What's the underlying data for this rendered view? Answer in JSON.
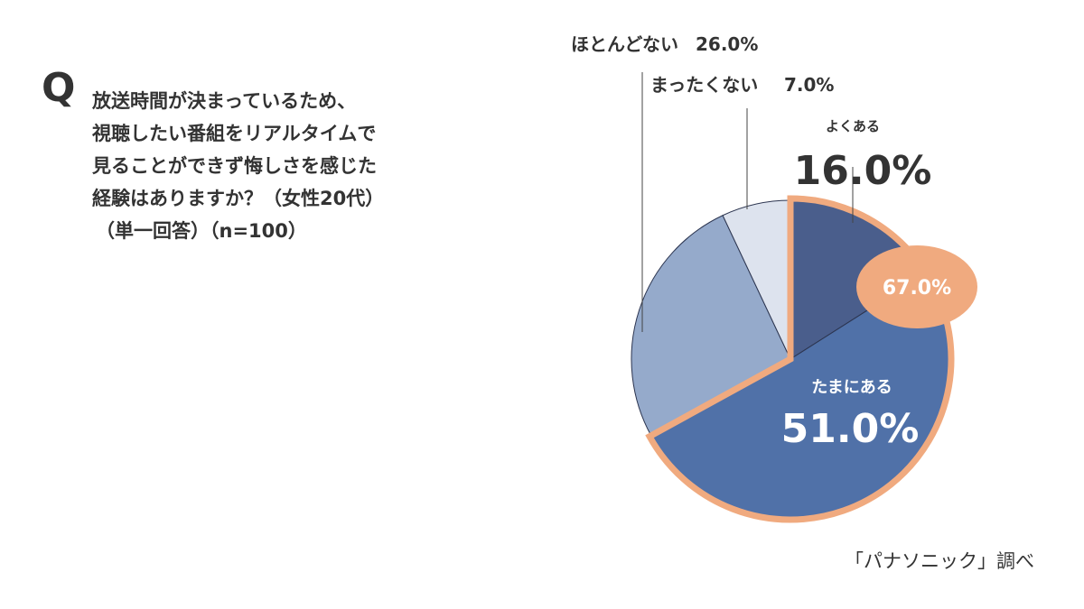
{
  "question": {
    "mark": "Q",
    "lines": [
      "放送時間が決まっているため、",
      "視聴したい番組をリアルタイムで",
      "見ることができず悔しさを感じた",
      "経験はありますか？（女性20代）",
      "（単一回答）（n=100）"
    ]
  },
  "source": "「パナソニック」調べ",
  "chart_data": {
    "type": "pie",
    "start_angle_deg": 0,
    "direction": "clockwise",
    "slices": [
      {
        "label": "よくある",
        "value": 16.0,
        "value_label": "16.0%",
        "color": "#4a5e8c"
      },
      {
        "label": "たまにある",
        "value": 51.0,
        "value_label": "51.0%",
        "color": "#5071a8"
      },
      {
        "label": "ほとんどない",
        "value": 26.0,
        "value_label": "26.0%",
        "color": "#95aacb"
      },
      {
        "label": "まったくない",
        "value": 7.0,
        "value_label": "7.0%",
        "color": "#dde3ee"
      }
    ],
    "highlight": {
      "slices": [
        "よくある",
        "たまにある"
      ],
      "total_label": "67.0%",
      "outline_color": "#f0aa7f",
      "badge_color": "#f0aa7f"
    }
  }
}
